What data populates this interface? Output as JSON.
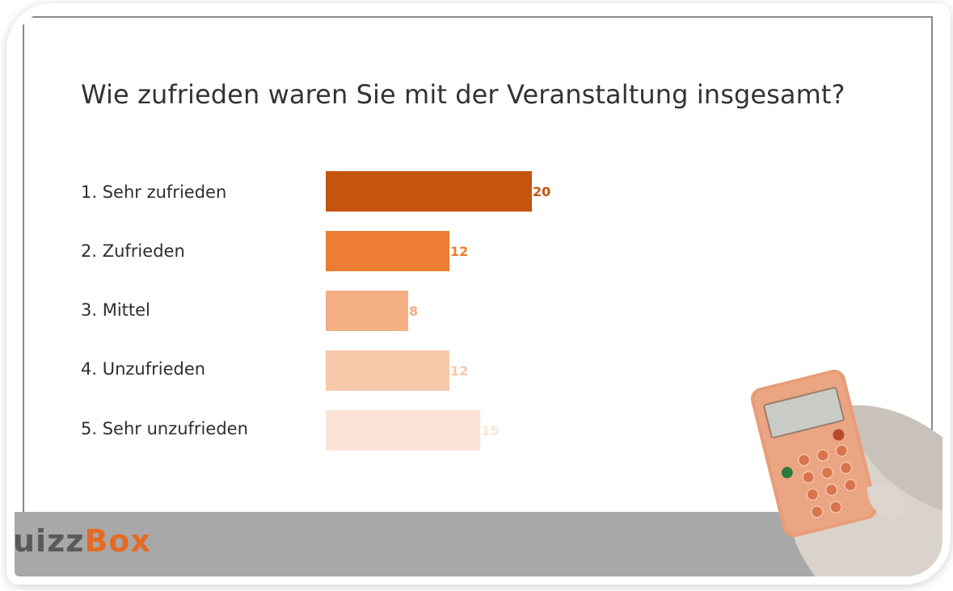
{
  "question": "Wie zufrieden waren Sie mit der Veranstaltung insgesamt?",
  "answers": [
    {
      "label": "1.  Sehr zufrieden",
      "value": "20",
      "color": "#c5540f"
    },
    {
      "label": "2. Zufrieden",
      "value": "12",
      "color": "#ec7d33"
    },
    {
      "label": "3. Mittel",
      "value": "8",
      "color": "#f3ae84"
    },
    {
      "label": "4. Unzufrieden",
      "value": "12",
      "color": "#f8c8aa"
    },
    {
      "label": "5. Sehr unzufrieden",
      "value": "15",
      "color": "#fbe3d5"
    }
  ],
  "chart_data": {
    "type": "bar",
    "orientation": "horizontal",
    "categories": [
      "1.  Sehr zufrieden",
      "2. Zufrieden",
      "3. Mittel",
      "4. Unzufrieden",
      "5. Sehr unzufrieden"
    ],
    "values": [
      20,
      12,
      8,
      12,
      15
    ],
    "title": "Wie zufrieden waren Sie mit der Veranstaltung insgesamt?",
    "xlabel": "",
    "ylabel": "",
    "xlim": [
      0,
      20
    ],
    "grid": false,
    "legend": "none"
  },
  "logo": {
    "part1": "QuizzBox",
    "part1_visible": "uizz",
    "part2": "Box",
    "full": "QuizzBox"
  },
  "device_icon": "audience-response-clicker-in-hand"
}
